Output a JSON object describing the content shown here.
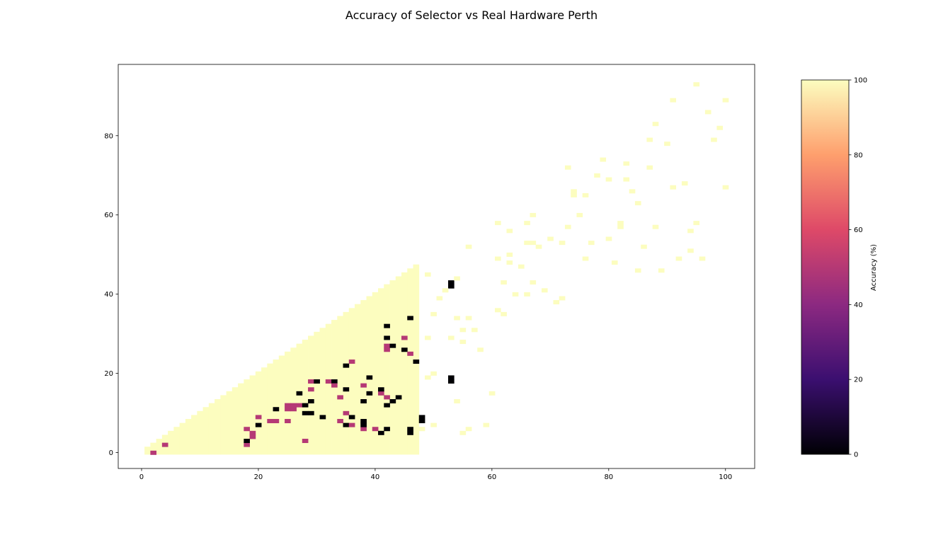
{
  "chart_data": {
    "type": "heatmap",
    "title": "Accuracy of Selector vs Real Hardware Perth",
    "xlabel": "",
    "ylabel": "",
    "xlim": [
      -4,
      105
    ],
    "ylim": [
      -4,
      98
    ],
    "x_ticks": [
      0,
      20,
      40,
      60,
      80,
      100
    ],
    "y_ticks": [
      0,
      20,
      40,
      60,
      80
    ],
    "colorbar": {
      "label": "Accuracy (%)",
      "range": [
        0,
        100
      ],
      "ticks": [
        0,
        20,
        40,
        60,
        80,
        100
      ],
      "colormap": "magma",
      "colors": [
        "#000004",
        "#3b0f70",
        "#8c2981",
        "#de4968",
        "#fe9f6d",
        "#fcfdbf"
      ]
    },
    "dense_region": {
      "x_range": [
        1,
        47
      ],
      "upper_bound": "y = x",
      "accuracy": 100
    },
    "cells": [
      [
        2,
        0,
        50
      ],
      [
        4,
        2,
        50
      ],
      [
        18,
        2,
        50
      ],
      [
        18,
        3,
        0
      ],
      [
        19,
        4,
        50
      ],
      [
        19,
        5,
        50
      ],
      [
        18,
        6,
        50
      ],
      [
        20,
        7,
        0
      ],
      [
        20,
        9,
        50
      ],
      [
        22,
        8,
        50
      ],
      [
        23,
        8,
        50
      ],
      [
        25,
        8,
        50
      ],
      [
        23,
        11,
        0
      ],
      [
        25,
        11,
        50
      ],
      [
        26,
        11,
        50
      ],
      [
        25,
        12,
        50
      ],
      [
        26,
        12,
        50
      ],
      [
        27,
        12,
        50
      ],
      [
        27,
        15,
        0
      ],
      [
        28,
        10,
        0
      ],
      [
        29,
        10,
        0
      ],
      [
        28,
        12,
        0
      ],
      [
        28,
        3,
        50
      ],
      [
        29,
        13,
        0
      ],
      [
        29,
        16,
        50
      ],
      [
        29,
        18,
        50
      ],
      [
        30,
        18,
        0
      ],
      [
        31,
        9,
        0
      ],
      [
        32,
        18,
        50
      ],
      [
        33,
        18,
        0
      ],
      [
        33,
        17,
        50
      ],
      [
        34,
        8,
        50
      ],
      [
        34,
        14,
        50
      ],
      [
        35,
        7,
        0
      ],
      [
        35,
        10,
        50
      ],
      [
        35,
        16,
        0
      ],
      [
        35,
        22,
        0
      ],
      [
        36,
        7,
        50
      ],
      [
        36,
        9,
        0
      ],
      [
        36,
        23,
        50
      ],
      [
        38,
        6,
        50
      ],
      [
        38,
        7,
        0
      ],
      [
        38,
        8,
        0
      ],
      [
        38,
        13,
        0
      ],
      [
        38,
        17,
        50
      ],
      [
        39,
        15,
        0
      ],
      [
        39,
        19,
        0
      ],
      [
        40,
        6,
        50
      ],
      [
        41,
        5,
        0
      ],
      [
        41,
        15,
        50
      ],
      [
        41,
        16,
        0
      ],
      [
        42,
        6,
        0
      ],
      [
        42,
        12,
        0
      ],
      [
        42,
        14,
        50
      ],
      [
        42,
        26,
        50
      ],
      [
        42,
        27,
        50
      ],
      [
        42,
        29,
        0
      ],
      [
        42,
        32,
        0
      ],
      [
        43,
        13,
        0
      ],
      [
        43,
        27,
        0
      ],
      [
        44,
        14,
        0
      ],
      [
        45,
        26,
        0
      ],
      [
        45,
        29,
        50
      ],
      [
        46,
        5,
        0
      ],
      [
        46,
        6,
        0
      ],
      [
        46,
        25,
        50
      ],
      [
        46,
        34,
        0
      ],
      [
        47,
        23,
        0
      ],
      [
        48,
        8,
        0
      ],
      [
        48,
        9,
        0
      ],
      [
        53,
        18,
        0
      ],
      [
        53,
        19,
        0
      ],
      [
        53,
        42,
        0
      ],
      [
        53,
        43,
        0
      ],
      [
        48,
        6,
        100
      ],
      [
        49,
        19,
        100
      ],
      [
        49,
        29,
        100
      ],
      [
        49,
        45,
        100
      ],
      [
        50,
        7,
        100
      ],
      [
        50,
        20,
        100
      ],
      [
        50,
        35,
        100
      ],
      [
        51,
        39,
        100
      ],
      [
        52,
        41,
        100
      ],
      [
        53,
        29,
        100
      ],
      [
        54,
        13,
        100
      ],
      [
        54,
        34,
        100
      ],
      [
        54,
        44,
        100
      ],
      [
        55,
        5,
        100
      ],
      [
        55,
        28,
        100
      ],
      [
        55,
        31,
        100
      ],
      [
        56,
        6,
        100
      ],
      [
        56,
        34,
        100
      ],
      [
        56,
        52,
        100
      ],
      [
        57,
        31,
        100
      ],
      [
        58,
        26,
        100
      ],
      [
        59,
        7,
        100
      ],
      [
        60,
        15,
        100
      ],
      [
        61,
        36,
        100
      ],
      [
        61,
        49,
        100
      ],
      [
        61,
        58,
        100
      ],
      [
        62,
        35,
        100
      ],
      [
        62,
        43,
        100
      ],
      [
        63,
        48,
        100
      ],
      [
        63,
        50,
        100
      ],
      [
        63,
        56,
        100
      ],
      [
        64,
        40,
        100
      ],
      [
        65,
        47,
        100
      ],
      [
        66,
        40,
        100
      ],
      [
        66,
        53,
        100
      ],
      [
        66,
        58,
        100
      ],
      [
        67,
        43,
        100
      ],
      [
        67,
        53,
        100
      ],
      [
        67,
        60,
        100
      ],
      [
        68,
        52,
        100
      ],
      [
        69,
        41,
        100
      ],
      [
        70,
        54,
        100
      ],
      [
        71,
        38,
        100
      ],
      [
        72,
        39,
        100
      ],
      [
        72,
        53,
        100
      ],
      [
        73,
        57,
        100
      ],
      [
        73,
        72,
        100
      ],
      [
        74,
        65,
        100
      ],
      [
        74,
        66,
        100
      ],
      [
        75,
        60,
        100
      ],
      [
        76,
        49,
        100
      ],
      [
        76,
        65,
        100
      ],
      [
        77,
        53,
        100
      ],
      [
        78,
        70,
        100
      ],
      [
        79,
        74,
        100
      ],
      [
        80,
        54,
        100
      ],
      [
        80,
        69,
        100
      ],
      [
        81,
        48,
        100
      ],
      [
        82,
        57,
        100
      ],
      [
        82,
        58,
        100
      ],
      [
        83,
        69,
        100
      ],
      [
        83,
        73,
        100
      ],
      [
        84,
        66,
        100
      ],
      [
        85,
        46,
        100
      ],
      [
        85,
        63,
        100
      ],
      [
        86,
        52,
        100
      ],
      [
        87,
        72,
        100
      ],
      [
        87,
        79,
        100
      ],
      [
        88,
        57,
        100
      ],
      [
        88,
        83,
        100
      ],
      [
        89,
        46,
        100
      ],
      [
        90,
        78,
        100
      ],
      [
        91,
        67,
        100
      ],
      [
        91,
        89,
        100
      ],
      [
        92,
        49,
        100
      ],
      [
        93,
        68,
        100
      ],
      [
        94,
        51,
        100
      ],
      [
        94,
        56,
        100
      ],
      [
        95,
        58,
        100
      ],
      [
        95,
        93,
        100
      ],
      [
        96,
        49,
        100
      ],
      [
        97,
        86,
        100
      ],
      [
        98,
        79,
        100
      ],
      [
        99,
        82,
        100
      ],
      [
        100,
        67,
        100
      ],
      [
        100,
        89,
        100
      ]
    ]
  }
}
